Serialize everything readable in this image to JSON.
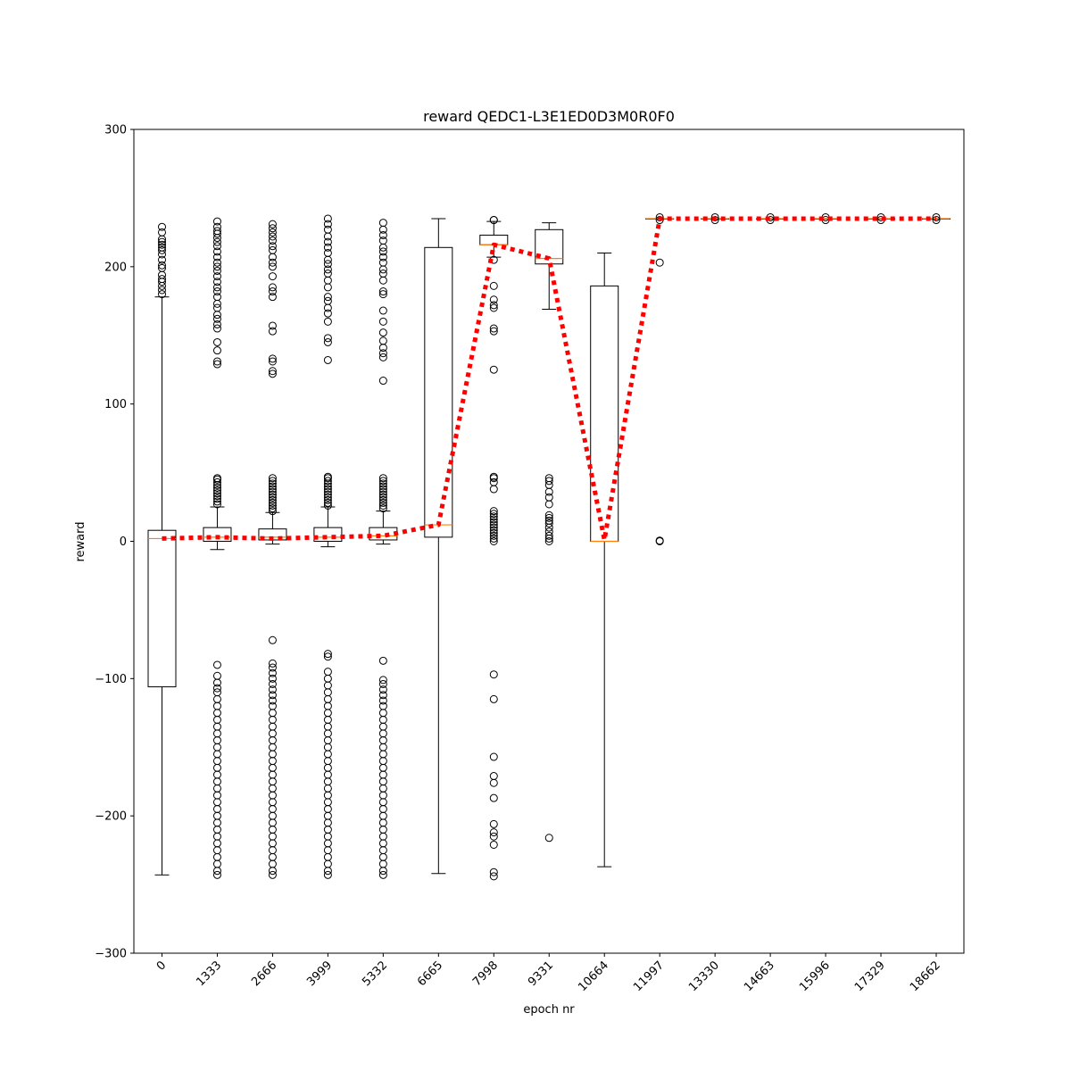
{
  "chart_data": {
    "type": "box",
    "title": "reward QEDC1-L3E1ED0D3M0R0F0",
    "xlabel": "epoch nr",
    "ylabel": "reward",
    "ylim": [
      -300,
      300
    ],
    "yticks": [
      -300,
      -200,
      -100,
      0,
      100,
      200,
      300
    ],
    "ytick_labels": [
      "−300",
      "−200",
      "−100",
      "0",
      "100",
      "200",
      "300"
    ],
    "categories": [
      "0",
      "1333",
      "2666",
      "3999",
      "5332",
      "6665",
      "7998",
      "9331",
      "10664",
      "11997",
      "13330",
      "14663",
      "15996",
      "17329",
      "18662"
    ],
    "boxes": [
      {
        "q1": -106,
        "median": 2,
        "q3": 8,
        "whislo": -243,
        "whishi": 178,
        "fliers": [
          180,
          183,
          186,
          189,
          191,
          194,
          199,
          201,
          205,
          209,
          212,
          214,
          216,
          218,
          220,
          225,
          229
        ]
      },
      {
        "q1": 0,
        "median": 3,
        "q3": 10,
        "whislo": -6,
        "whishi": 25,
        "fliers": [
          27,
          29,
          31,
          33,
          35,
          37,
          39,
          41,
          43,
          45,
          46,
          129,
          131,
          139,
          145,
          155,
          158,
          162,
          165,
          170,
          173,
          178,
          182,
          185,
          189,
          193,
          197,
          200,
          203,
          207,
          211,
          215,
          218,
          221,
          224,
          226,
          229,
          233,
          -90,
          -98,
          -103,
          -107,
          -110,
          -115,
          -120,
          -125,
          -130,
          -135,
          -140,
          -145,
          -150,
          -155,
          -160,
          -165,
          -170,
          -175,
          -180,
          -185,
          -190,
          -195,
          -200,
          -205,
          -210,
          -215,
          -220,
          -225,
          -230,
          -235,
          -240,
          -243
        ]
      },
      {
        "q1": 1,
        "median": 3,
        "q3": 9,
        "whislo": -2,
        "whishi": 21,
        "fliers": [
          22,
          24,
          26,
          28,
          30,
          32,
          34,
          36,
          38,
          40,
          42,
          44,
          46,
          122,
          124,
          131,
          133,
          153,
          157,
          178,
          182,
          185,
          193,
          200,
          203,
          207,
          212,
          215,
          219,
          222,
          225,
          228,
          231,
          -72,
          -89,
          -92,
          -96,
          -100,
          -104,
          -108,
          -112,
          -116,
          -120,
          -125,
          -130,
          -135,
          -140,
          -145,
          -150,
          -155,
          -160,
          -165,
          -170,
          -175,
          -180,
          -185,
          -190,
          -195,
          -200,
          -205,
          -210,
          -215,
          -220,
          -225,
          -230,
          -235,
          -240,
          -243
        ]
      },
      {
        "q1": 0,
        "median": 3,
        "q3": 10,
        "whislo": -4,
        "whishi": 25,
        "fliers": [
          26,
          28,
          30,
          32,
          34,
          36,
          38,
          40,
          42,
          44,
          46,
          47,
          132,
          145,
          148,
          160,
          166,
          170,
          175,
          178,
          185,
          190,
          195,
          198,
          202,
          205,
          210,
          214,
          218,
          222,
          227,
          231,
          235,
          -82,
          -84,
          -95,
          -100,
          -105,
          -110,
          -115,
          -120,
          -125,
          -130,
          -135,
          -140,
          -145,
          -150,
          -155,
          -160,
          -165,
          -170,
          -175,
          -180,
          -185,
          -190,
          -195,
          -200,
          -205,
          -210,
          -215,
          -220,
          -225,
          -230,
          -235,
          -240,
          -243
        ]
      },
      {
        "q1": 1,
        "median": 4,
        "q3": 10,
        "whislo": -2,
        "whishi": 22,
        "fliers": [
          24,
          26,
          28,
          30,
          32,
          34,
          36,
          38,
          40,
          42,
          44,
          46,
          117,
          134,
          137,
          141,
          146,
          152,
          160,
          168,
          180,
          182,
          190,
          195,
          198,
          203,
          207,
          211,
          214,
          219,
          223,
          227,
          232,
          -87,
          -101,
          -104,
          -108,
          -112,
          -116,
          -120,
          -125,
          -130,
          -135,
          -140,
          -145,
          -150,
          -155,
          -160,
          -165,
          -170,
          -175,
          -180,
          -185,
          -190,
          -195,
          -200,
          -205,
          -210,
          -215,
          -220,
          -225,
          -230,
          -235,
          -240,
          -243
        ]
      },
      {
        "q1": 3,
        "median": 12,
        "q3": 214,
        "whislo": -242,
        "whishi": 235,
        "fliers": []
      },
      {
        "q1": 216,
        "median": 216,
        "q3": 223,
        "whislo": 207,
        "whishi": 233,
        "fliers": [
          234,
          234,
          205,
          186,
          176,
          172,
          170,
          155,
          153,
          125,
          47,
          46,
          43,
          38,
          22,
          20,
          18,
          16,
          14,
          12,
          10,
          8,
          6,
          4,
          2,
          0,
          -97,
          -115,
          -157,
          -171,
          -176,
          -187,
          -206,
          -212,
          -215,
          -221,
          -241,
          -244
        ]
      },
      {
        "q1": 202,
        "median": 206,
        "q3": 227,
        "whislo": 169,
        "whishi": 232,
        "fliers": [
          46,
          44,
          41,
          36,
          32,
          27,
          19,
          17,
          15,
          13,
          10,
          7,
          4,
          2,
          0,
          -216
        ]
      },
      {
        "q1": 0,
        "median": 0,
        "q3": 186,
        "whislo": -237,
        "whishi": 210,
        "fliers": []
      },
      {
        "q1": 235,
        "median": 235,
        "q3": 235,
        "whislo": 235,
        "whishi": 235,
        "fliers": [
          236,
          234,
          203,
          0,
          0.5
        ]
      },
      {
        "q1": 235,
        "median": 235,
        "q3": 235,
        "whislo": 235,
        "whishi": 235,
        "fliers": [
          236,
          234
        ]
      },
      {
        "q1": 235,
        "median": 235,
        "q3": 235,
        "whislo": 235,
        "whishi": 235,
        "fliers": [
          236,
          234
        ]
      },
      {
        "q1": 235,
        "median": 235,
        "q3": 235,
        "whislo": 235,
        "whishi": 235,
        "fliers": [
          236,
          234
        ]
      },
      {
        "q1": 235,
        "median": 235,
        "q3": 235,
        "whislo": 235,
        "whishi": 235,
        "fliers": [
          236,
          234
        ]
      },
      {
        "q1": 235,
        "median": 235,
        "q3": 235,
        "whislo": 235,
        "whishi": 235,
        "fliers": [
          236,
          234
        ]
      }
    ],
    "mean_line": {
      "values": [
        2,
        3,
        2,
        3,
        4,
        12,
        216,
        206,
        1,
        235,
        235,
        235,
        235,
        235,
        235
      ],
      "color": "#ff0000",
      "style": "dotted"
    },
    "colors": {
      "box": "#000000",
      "median": "#ff7f0e",
      "flier": "#000000",
      "mean": "#ff0000"
    },
    "grid": false
  }
}
